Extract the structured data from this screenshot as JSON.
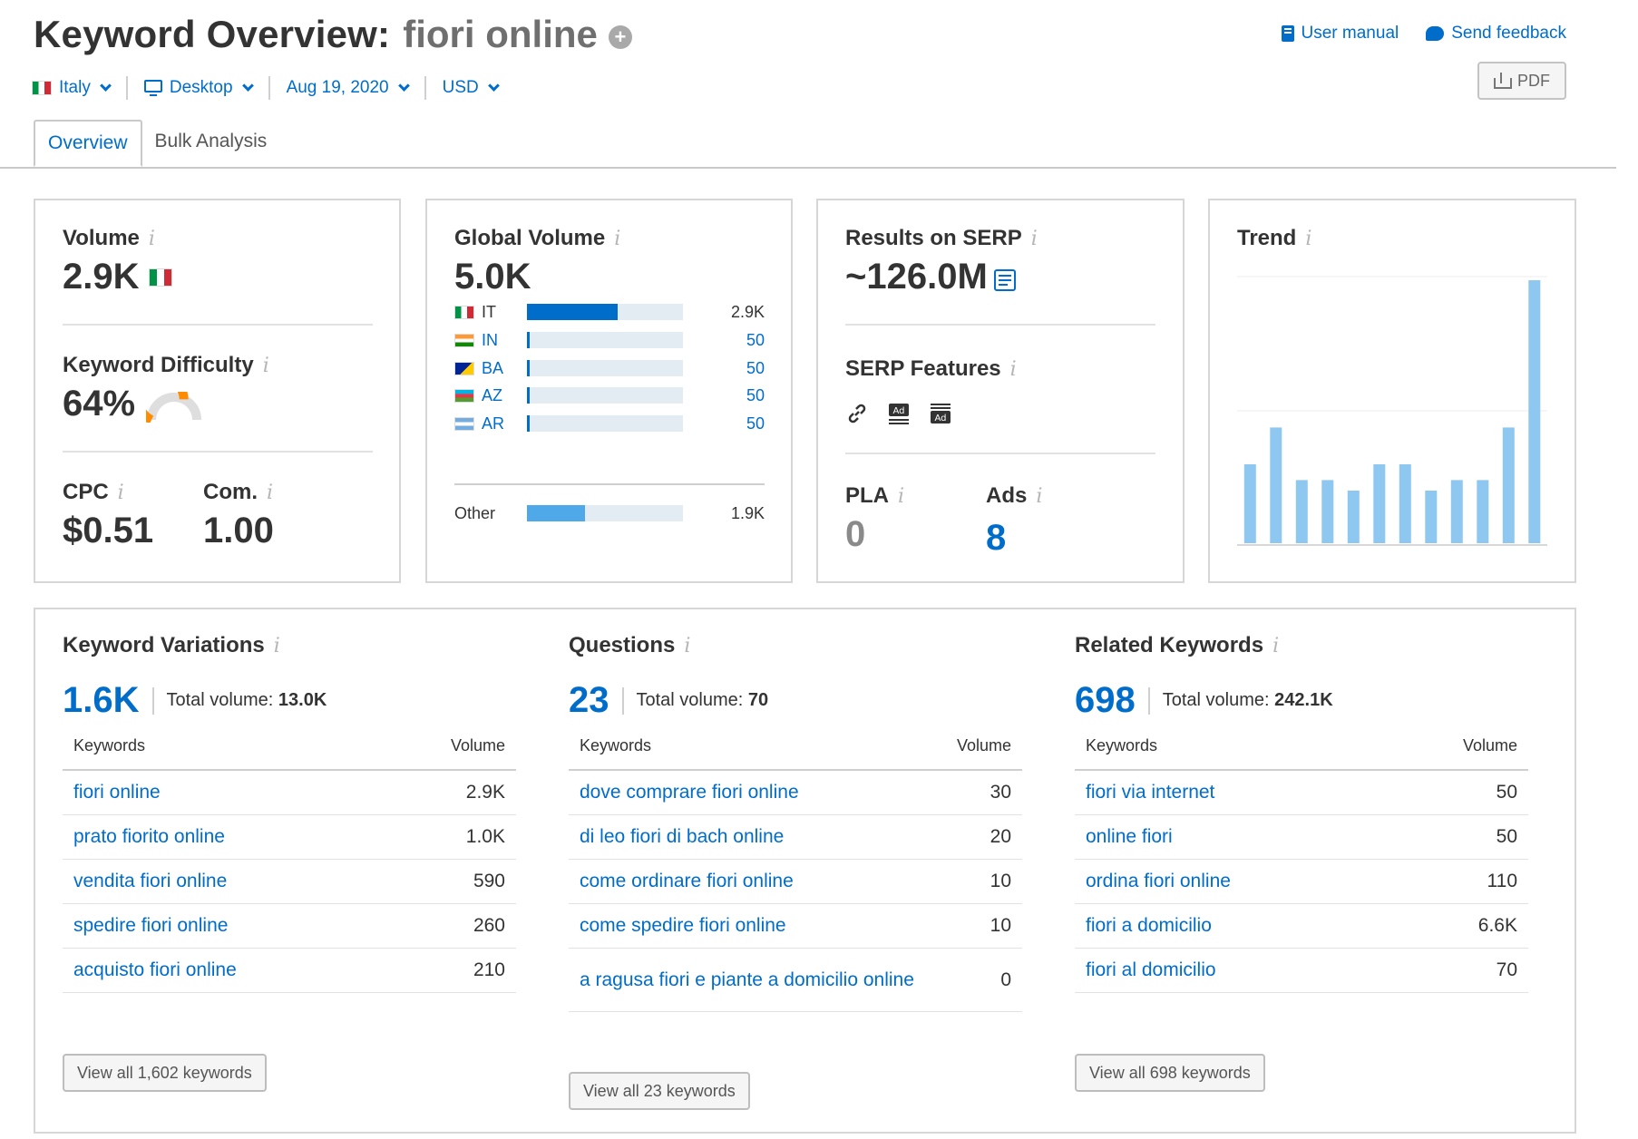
{
  "header": {
    "title": "Keyword Overview:",
    "keyword": "fiori online",
    "user_manual": "User manual",
    "send_feedback": "Send feedback",
    "pdf_label": "PDF"
  },
  "filters": {
    "country": "Italy",
    "device": "Desktop",
    "date": "Aug 19, 2020",
    "currency": "USD"
  },
  "tabs": [
    {
      "label": "Overview",
      "active": true
    },
    {
      "label": "Bulk Analysis",
      "active": false
    }
  ],
  "info_glyph": "i",
  "volume_card": {
    "volume_label": "Volume",
    "volume_value": "2.9K",
    "kd_label": "Keyword Difficulty",
    "kd_value": "64%",
    "kd_percent": 64,
    "cpc_label": "CPC",
    "cpc_value": "$0.51",
    "com_label": "Com.",
    "com_value": "1.00"
  },
  "global_volume_card": {
    "label": "Global Volume",
    "value": "5.0K",
    "countries": [
      {
        "code": "IT",
        "value": "2.9K",
        "share": 0.58,
        "flag": "it"
      },
      {
        "code": "IN",
        "value": "50",
        "share": 0.01,
        "flag": "in"
      },
      {
        "code": "BA",
        "value": "50",
        "share": 0.01,
        "flag": "ba"
      },
      {
        "code": "AZ",
        "value": "50",
        "share": 0.01,
        "flag": "az"
      },
      {
        "code": "AR",
        "value": "50",
        "share": 0.01,
        "flag": "ar"
      }
    ],
    "other": {
      "label": "Other",
      "value": "1.9K",
      "share": 0.37
    }
  },
  "serp_card": {
    "results_label": "Results on SERP",
    "results_value": "~126.0M",
    "features_label": "SERP Features",
    "features": [
      "link-icon",
      "ad-top-icon",
      "ad-bottom-icon"
    ],
    "ad_glyph": "Ad",
    "pla_label": "PLA",
    "pla_value": "0",
    "ads_label": "Ads",
    "ads_value": "8"
  },
  "trend_card": {
    "label": "Trend",
    "values": [
      0.3,
      0.44,
      0.24,
      0.24,
      0.2,
      0.3,
      0.3,
      0.2,
      0.24,
      0.24,
      0.44,
      1.0
    ]
  },
  "keyword_variations": {
    "title": "Keyword Variations",
    "count": "1.6K",
    "total_label": "Total volume:",
    "total_value": "13.0K",
    "col_keywords": "Keywords",
    "col_volume": "Volume",
    "rows": [
      {
        "keyword": "fiori online",
        "volume": "2.9K"
      },
      {
        "keyword": "prato fiorito online",
        "volume": "1.0K"
      },
      {
        "keyword": "vendita fiori online",
        "volume": "590"
      },
      {
        "keyword": "spedire fiori online",
        "volume": "260"
      },
      {
        "keyword": "acquisto fiori online",
        "volume": "210"
      }
    ],
    "view_all": "View all 1,602 keywords"
  },
  "questions": {
    "title": "Questions",
    "count": "23",
    "total_label": "Total volume:",
    "total_value": "70",
    "col_keywords": "Keywords",
    "col_volume": "Volume",
    "rows": [
      {
        "keyword": "dove comprare fiori online",
        "volume": "30"
      },
      {
        "keyword": "di leo fiori di bach online",
        "volume": "20"
      },
      {
        "keyword": "come ordinare fiori online",
        "volume": "10"
      },
      {
        "keyword": "come spedire fiori online",
        "volume": "10"
      },
      {
        "keyword": "a ragusa fiori e piante a domicilio online",
        "volume": "0"
      }
    ],
    "view_all": "View all 23 keywords"
  },
  "related_keywords": {
    "title": "Related Keywords",
    "count": "698",
    "total_label": "Total volume:",
    "total_value": "242.1K",
    "col_keywords": "Keywords",
    "col_volume": "Volume",
    "rows": [
      {
        "keyword": "fiori via internet",
        "volume": "50"
      },
      {
        "keyword": "online fiori",
        "volume": "50"
      },
      {
        "keyword": "ordina fiori online",
        "volume": "110"
      },
      {
        "keyword": "fiori a domicilio",
        "volume": "6.6K"
      },
      {
        "keyword": "fiori al domicilio",
        "volume": "70"
      }
    ],
    "view_all": "View all 698 keywords"
  },
  "colors": {
    "accent": "#006dca",
    "kd_orange": "#ff8c00",
    "trend_bar": "#8ec8f0",
    "bar_track": "#e4ecf3",
    "other_bar": "#4fa8e8"
  }
}
